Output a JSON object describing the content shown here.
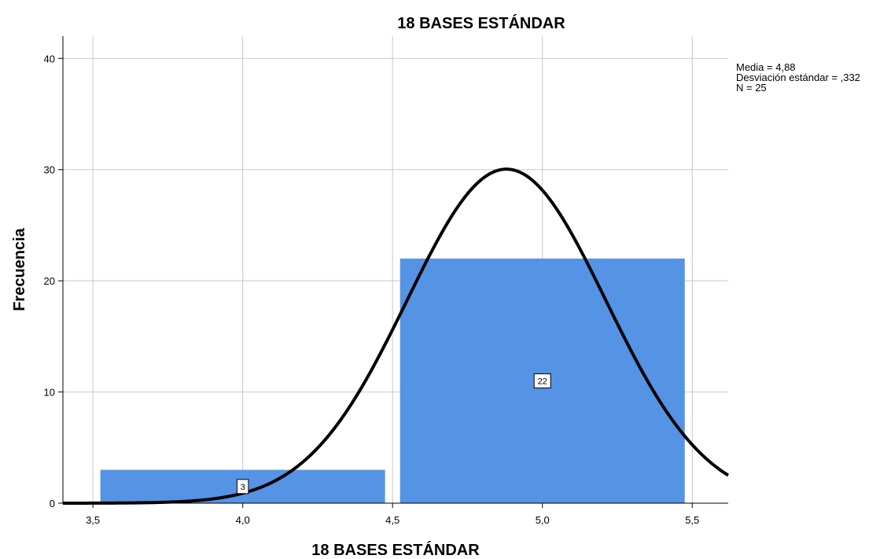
{
  "chart_data": {
    "type": "bar",
    "title": "18 BASES ESTÁNDAR",
    "xlabel": "18 BASES ESTÁNDAR",
    "ylabel": "Frecuencia",
    "xlim": [
      3.4,
      5.62
    ],
    "ylim": [
      0,
      42
    ],
    "grid": true,
    "x_ticks": [
      {
        "value": 3.5,
        "label": "3,5"
      },
      {
        "value": 4.0,
        "label": "4,0"
      },
      {
        "value": 4.5,
        "label": "4,5"
      },
      {
        "value": 5.0,
        "label": "5,0"
      },
      {
        "value": 5.5,
        "label": "5,5"
      }
    ],
    "y_ticks": [
      {
        "value": 0,
        "label": "0"
      },
      {
        "value": 10,
        "label": "10"
      },
      {
        "value": 20,
        "label": "20"
      },
      {
        "value": 30,
        "label": "30"
      },
      {
        "value": 40,
        "label": "40"
      }
    ],
    "bars": [
      {
        "x0": 3.525,
        "x1": 4.475,
        "value": 3,
        "label": "3"
      },
      {
        "x0": 4.525,
        "x1": 5.475,
        "value": 22,
        "label": "22"
      }
    ],
    "bar_color": "#5593e4",
    "normal_curve": {
      "mean": 4.88,
      "sd": 0.332,
      "n": 25,
      "bin_width": 1.0,
      "color": "#000000"
    },
    "stats": [
      "Media = 4,88",
      "Desviación estándar = ,332",
      "N = 25"
    ]
  }
}
